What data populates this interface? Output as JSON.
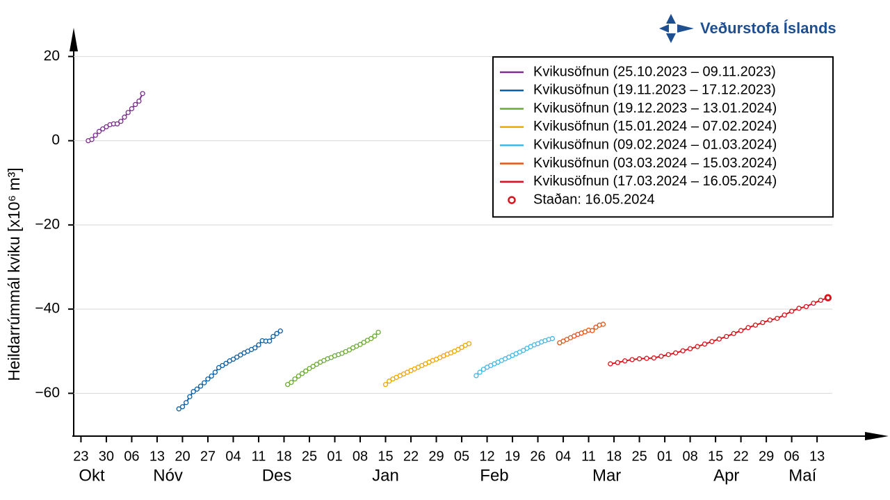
{
  "chart_data": {
    "type": "line",
    "logo_text": "Veðurstofa Íslands",
    "y_label": "Heildarrúmmál kviku  [x10⁶ m³]",
    "xlim": [
      "2023-10-21",
      "2024-05-31"
    ],
    "ylim": [
      -70,
      26
    ],
    "yticks": [
      {
        "value": -60,
        "label": "−60"
      },
      {
        "value": -40,
        "label": "−40"
      },
      {
        "value": -20,
        "label": "−20"
      },
      0,
      20
    ],
    "xticks": [
      {
        "value": "2023-10-23",
        "label": "23"
      },
      {
        "value": "2023-10-30",
        "label": "30"
      },
      {
        "value": "2023-11-06",
        "label": "06"
      },
      {
        "value": "2023-11-13",
        "label": "13"
      },
      {
        "value": "2023-11-20",
        "label": "20"
      },
      {
        "value": "2023-11-27",
        "label": "27"
      },
      {
        "value": "2023-12-04",
        "label": "04"
      },
      {
        "value": "2023-12-11",
        "label": "11"
      },
      {
        "value": "2023-12-18",
        "label": "18"
      },
      {
        "value": "2023-12-25",
        "label": "25"
      },
      {
        "value": "2024-01-01",
        "label": "01"
      },
      {
        "value": "2024-01-08",
        "label": "08"
      },
      {
        "value": "2024-01-15",
        "label": "15"
      },
      {
        "value": "2024-01-22",
        "label": "22"
      },
      {
        "value": "2024-01-29",
        "label": "29"
      },
      {
        "value": "2024-02-05",
        "label": "05"
      },
      {
        "value": "2024-02-12",
        "label": "12"
      },
      {
        "value": "2024-02-19",
        "label": "19"
      },
      {
        "value": "2024-02-26",
        "label": "26"
      },
      {
        "value": "2024-03-04",
        "label": "04"
      },
      {
        "value": "2024-03-11",
        "label": "11"
      },
      {
        "value": "2024-03-18",
        "label": "18"
      },
      {
        "value": "2024-03-25",
        "label": "25"
      },
      {
        "value": "2024-04-01",
        "label": "01"
      },
      {
        "value": "2024-04-08",
        "label": "08"
      },
      {
        "value": "2024-04-15",
        "label": "15"
      },
      {
        "value": "2024-04-22",
        "label": "22"
      },
      {
        "value": "2024-04-29",
        "label": "29"
      },
      {
        "value": "2024-05-06",
        "label": "06"
      },
      {
        "value": "2024-05-13",
        "label": "13"
      }
    ],
    "month_labels": [
      {
        "value": "2023-10-26",
        "label": "Okt"
      },
      {
        "value": "2023-11-16",
        "label": "Nóv"
      },
      {
        "value": "2023-12-16",
        "label": "Des"
      },
      {
        "value": "2024-01-15",
        "label": "Jan"
      },
      {
        "value": "2024-02-14",
        "label": "Feb"
      },
      {
        "value": "2024-03-16",
        "label": "Mar"
      },
      {
        "value": "2024-04-18",
        "label": "Apr"
      },
      {
        "value": "2024-05-09",
        "label": "Maí"
      }
    ],
    "grid": true,
    "legend": "upper right",
    "series": [
      {
        "name": "Kvikusöfnun (25.10.2023 – 09.11.2023)",
        "color": "#7b2d8e",
        "x": [
          "2023-10-25",
          "2023-10-26",
          "2023-10-27",
          "2023-10-28",
          "2023-10-29",
          "2023-10-30",
          "2023-10-31",
          "2023-11-01",
          "2023-11-02",
          "2023-11-03",
          "2023-11-04",
          "2023-11-05",
          "2023-11-06",
          "2023-11-07",
          "2023-11-08",
          "2023-11-09"
        ],
        "values": [
          0,
          0.3,
          1.3,
          2.2,
          2.8,
          3.3,
          3.8,
          4.0,
          4.0,
          4.6,
          5.6,
          6.7,
          7.6,
          8.6,
          9.4,
          11.2
        ]
      },
      {
        "name": "Kvikusöfnun (19.11.2023 – 17.12.2023)",
        "color": "#0b5fa5",
        "x": [
          "2023-11-19",
          "2023-11-20",
          "2023-11-21",
          "2023-11-22",
          "2023-11-23",
          "2023-11-24",
          "2023-11-25",
          "2023-11-26",
          "2023-11-27",
          "2023-11-28",
          "2023-11-29",
          "2023-11-30",
          "2023-12-01",
          "2023-12-02",
          "2023-12-03",
          "2023-12-04",
          "2023-12-05",
          "2023-12-06",
          "2023-12-07",
          "2023-12-08",
          "2023-12-09",
          "2023-12-10",
          "2023-12-11",
          "2023-12-12",
          "2023-12-13",
          "2023-12-14",
          "2023-12-15",
          "2023-12-16",
          "2023-12-17"
        ],
        "values": [
          -63.7,
          -63.2,
          -62.2,
          -60.8,
          -59.6,
          -59.0,
          -58.3,
          -57.5,
          -56.6,
          -55.9,
          -55.0,
          -53.9,
          -53.4,
          -52.9,
          -52.3,
          -51.9,
          -51.4,
          -50.9,
          -50.4,
          -50.0,
          -49.6,
          -49.2,
          -48.5,
          -47.5,
          -47.6,
          -47.6,
          -46.5,
          -45.8,
          -45.2
        ]
      },
      {
        "name": "Kvikusöfnun (19.12.2023 – 13.01.2024)",
        "color": "#6aab2e",
        "x": [
          "2023-12-19",
          "2023-12-20",
          "2023-12-21",
          "2023-12-22",
          "2023-12-23",
          "2023-12-24",
          "2023-12-25",
          "2023-12-26",
          "2023-12-27",
          "2023-12-28",
          "2023-12-29",
          "2023-12-30",
          "2023-12-31",
          "2024-01-01",
          "2024-01-02",
          "2024-01-03",
          "2024-01-04",
          "2024-01-05",
          "2024-01-06",
          "2024-01-07",
          "2024-01-08",
          "2024-01-09",
          "2024-01-10",
          "2024-01-11",
          "2024-01-12",
          "2024-01-13"
        ],
        "values": [
          -57.9,
          -57.4,
          -56.6,
          -55.9,
          -55.3,
          -54.7,
          -54.1,
          -53.6,
          -53.1,
          -52.6,
          -52.2,
          -51.8,
          -51.5,
          -51.1,
          -50.8,
          -50.5,
          -50.1,
          -49.7,
          -49.2,
          -48.8,
          -48.4,
          -47.9,
          -47.4,
          -47.0,
          -46.4,
          -45.5
        ]
      },
      {
        "name": "Kvikusöfnun (15.01.2024 – 07.02.2024)",
        "color": "#f0a500",
        "x": [
          "2024-01-15",
          "2024-01-16",
          "2024-01-17",
          "2024-01-18",
          "2024-01-19",
          "2024-01-20",
          "2024-01-21",
          "2024-01-22",
          "2024-01-23",
          "2024-01-24",
          "2024-01-25",
          "2024-01-26",
          "2024-01-27",
          "2024-01-28",
          "2024-01-29",
          "2024-01-30",
          "2024-01-31",
          "2024-02-01",
          "2024-02-02",
          "2024-02-03",
          "2024-02-04",
          "2024-02-05",
          "2024-02-06",
          "2024-02-07"
        ],
        "values": [
          -57.9,
          -57.1,
          -56.6,
          -56.2,
          -55.8,
          -55.4,
          -55.0,
          -54.6,
          -54.2,
          -53.8,
          -53.4,
          -53.0,
          -52.6,
          -52.2,
          -51.9,
          -51.5,
          -51.1,
          -50.7,
          -50.4,
          -50.0,
          -49.6,
          -49.1,
          -48.6,
          -48.2
        ]
      },
      {
        "name": "Kvikusöfnun (09.02.2024 – 01.03.2024)",
        "color": "#3fb8e8",
        "x": [
          "2024-02-09",
          "2024-02-10",
          "2024-02-11",
          "2024-02-12",
          "2024-02-13",
          "2024-02-14",
          "2024-02-15",
          "2024-02-16",
          "2024-02-17",
          "2024-02-18",
          "2024-02-19",
          "2024-02-20",
          "2024-02-21",
          "2024-02-22",
          "2024-02-23",
          "2024-02-24",
          "2024-02-25",
          "2024-02-26",
          "2024-02-27",
          "2024-02-28",
          "2024-02-29",
          "2024-03-01"
        ],
        "values": [
          -55.8,
          -55.0,
          -54.3,
          -53.8,
          -53.4,
          -53.0,
          -52.6,
          -52.2,
          -51.8,
          -51.4,
          -51.0,
          -50.6,
          -50.2,
          -49.8,
          -49.3,
          -48.9,
          -48.5,
          -48.2,
          -47.8,
          -47.5,
          -47.2,
          -47.0
        ]
      },
      {
        "name": "Kvikusöfnun (03.03.2024 – 15.03.2024)",
        "color": "#e0561b",
        "x": [
          "2024-03-03",
          "2024-03-04",
          "2024-03-05",
          "2024-03-06",
          "2024-03-07",
          "2024-03-08",
          "2024-03-09",
          "2024-03-10",
          "2024-03-11",
          "2024-03-12",
          "2024-03-13",
          "2024-03-14",
          "2024-03-15"
        ],
        "values": [
          -48.0,
          -47.6,
          -47.2,
          -46.8,
          -46.4,
          -46.0,
          -45.7,
          -45.4,
          -45.0,
          -45.1,
          -44.3,
          -43.8,
          -43.6
        ]
      },
      {
        "name": "Kvikusöfnun (17.03.2024 – 16.05.2024)",
        "color": "#d9121b",
        "x": [
          "2024-03-17",
          "2024-03-19",
          "2024-03-21",
          "2024-03-23",
          "2024-03-25",
          "2024-03-27",
          "2024-03-29",
          "2024-03-31",
          "2024-04-02",
          "2024-04-04",
          "2024-04-06",
          "2024-04-08",
          "2024-04-10",
          "2024-04-12",
          "2024-04-14",
          "2024-04-16",
          "2024-04-18",
          "2024-04-20",
          "2024-04-22",
          "2024-04-24",
          "2024-04-26",
          "2024-04-28",
          "2024-04-30",
          "2024-05-02",
          "2024-05-04",
          "2024-05-06",
          "2024-05-08",
          "2024-05-10",
          "2024-05-12",
          "2024-05-14",
          "2024-05-16"
        ],
        "values": [
          -53.0,
          -52.7,
          -52.3,
          -52.0,
          -51.8,
          -51.7,
          -51.6,
          -51.2,
          -50.8,
          -50.4,
          -49.9,
          -49.4,
          -48.9,
          -48.3,
          -47.7,
          -47.1,
          -46.5,
          -45.8,
          -45.1,
          -44.4,
          -43.8,
          -43.2,
          -42.6,
          -42.2,
          -41.4,
          -40.5,
          -39.8,
          -39.4,
          -38.6,
          -37.9,
          -37.3
        ]
      }
    ],
    "current": {
      "name": "Staðan: 16.05.2024",
      "color": "#d9121b",
      "x": "2024-05-16",
      "value": -37.3
    }
  }
}
